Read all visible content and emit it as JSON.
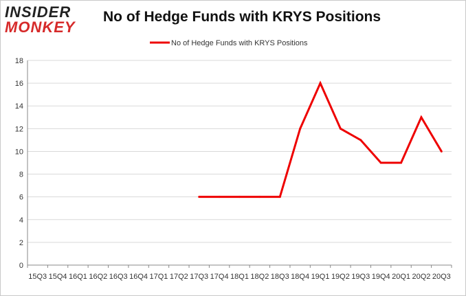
{
  "logo": {
    "line1": "INSIDER",
    "line2": "MONKEY"
  },
  "colors": {
    "series": "#ee0000",
    "grid": "#d9d9d9",
    "axis": "#888888"
  },
  "chart_data": {
    "type": "line",
    "title": "No of Hedge Funds with KRYS Positions",
    "xlabel": "",
    "ylabel": "",
    "ylim": [
      0,
      18
    ],
    "yticks": [
      0,
      2,
      4,
      6,
      8,
      10,
      12,
      14,
      16,
      18
    ],
    "grid": "horizontal",
    "legend_position": "top-center",
    "categories": [
      "15Q3",
      "15Q4",
      "16Q1",
      "16Q2",
      "16Q3",
      "16Q4",
      "17Q1",
      "17Q2",
      "17Q3",
      "17Q4",
      "18Q1",
      "18Q2",
      "18Q3",
      "18Q4",
      "19Q1",
      "19Q2",
      "19Q3",
      "19Q4",
      "20Q1",
      "20Q2",
      "20Q3"
    ],
    "series": [
      {
        "name": "No of Hedge Funds with KRYS Positions",
        "values": [
          null,
          null,
          null,
          null,
          null,
          null,
          null,
          null,
          6,
          6,
          6,
          6,
          6,
          12,
          16,
          12,
          11,
          9,
          9,
          13,
          10
        ]
      }
    ]
  }
}
